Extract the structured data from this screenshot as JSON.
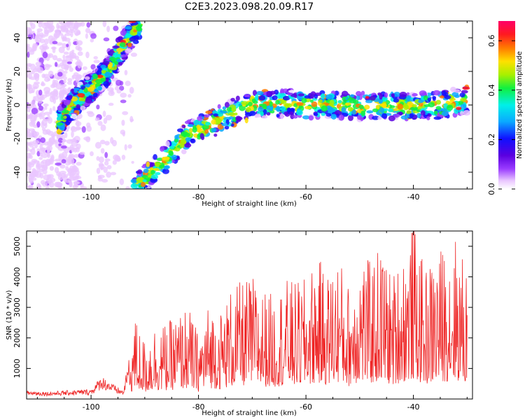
{
  "title": "C2E3.2023.098.20.09.R17",
  "chart_data": [
    {
      "type": "heatmap",
      "xlabel": "Height of straight line (km)",
      "ylabel": "Frequency (Hz)",
      "xlim": [
        -112,
        -29
      ],
      "ylim": [
        -50,
        50
      ],
      "xticks": [
        -100,
        -80,
        -60,
        -40
      ],
      "yticks": [
        -40,
        -20,
        0,
        20,
        40
      ],
      "x_tick_labels": [
        "-100",
        "-80",
        "-60",
        "-40"
      ],
      "y_tick_labels": [
        "-40",
        "-20",
        "0",
        "20",
        "40"
      ],
      "colorbar": {
        "label": "Normalized spectral amplitude",
        "range": [
          0,
          0.68
        ],
        "ticks": [
          0.0,
          0.2,
          0.4,
          0.6
        ],
        "tick_labels": [
          "0.0",
          "0.2",
          "0.4",
          "0.6"
        ],
        "colormap": [
          "#ffffff",
          "#e9c6ff",
          "#9a3cff",
          "#5a00e0",
          "#1010ff",
          "#0aa8ff",
          "#00f0e8",
          "#10f040",
          "#a8f000",
          "#ffe000",
          "#ff7a00",
          "#ff1a20",
          "#ff0068"
        ]
      },
      "ridges": [
        {
          "name": "",
          "x": [
            -106,
            -103,
            -100,
            -97,
            -95,
            -93,
            -91
          ],
          "y": [
            -10,
            2,
            10,
            20,
            30,
            40,
            48
          ]
        },
        {
          "name": "",
          "x": [
            -92,
            -88,
            -85,
            -82,
            -78,
            -74,
            -70,
            -65,
            -60,
            -55,
            -50,
            -45,
            -40,
            -35,
            -30
          ],
          "y": [
            -50,
            -38,
            -28,
            -18,
            -12,
            -5,
            0,
            1,
            0,
            0,
            -1,
            0,
            -1,
            0,
            3
          ]
        }
      ],
      "background_scatter_x": [
        -112,
        -102
      ]
    },
    {
      "type": "line",
      "xlabel": "Height of straight line (km)",
      "ylabel": "SNR (10 * v/v)",
      "xlim": [
        -112,
        -29
      ],
      "ylim": [
        0,
        5500
      ],
      "xticks": [
        -100,
        -80,
        -60,
        -40
      ],
      "yticks": [
        1000,
        2000,
        3000,
        4000,
        5000
      ],
      "x_tick_labels": [
        "-100",
        "-80",
        "-60",
        "-40"
      ],
      "y_tick_labels": [
        "1000",
        "2000",
        "3000",
        "4000",
        "5000"
      ],
      "series": [
        {
          "name": "",
          "color": "#ee2222",
          "x": [
            -112,
            -108,
            -104,
            -100,
            -98,
            -96,
            -94,
            -93,
            -92,
            -90,
            -88,
            -86,
            -84,
            -82,
            -80,
            -78,
            -76,
            -74,
            -72,
            -70,
            -68,
            -66,
            -64,
            -62,
            -60,
            -58,
            -56,
            -54,
            -52,
            -50,
            -48,
            -46,
            -44,
            -42,
            -40,
            -38,
            -36,
            -34,
            -32,
            -30
          ],
          "y": [
            250,
            220,
            260,
            300,
            700,
            450,
            250,
            1200,
            2600,
            1800,
            2400,
            2300,
            2600,
            2900,
            2000,
            3000,
            2700,
            3400,
            3600,
            3800,
            3400,
            3200,
            3700,
            3600,
            3700,
            4400,
            3900,
            4500,
            3500,
            4700,
            4200,
            4800,
            3800,
            4600,
            5450,
            4000,
            4500,
            4800,
            5100,
            4000
          ]
        }
      ]
    }
  ]
}
